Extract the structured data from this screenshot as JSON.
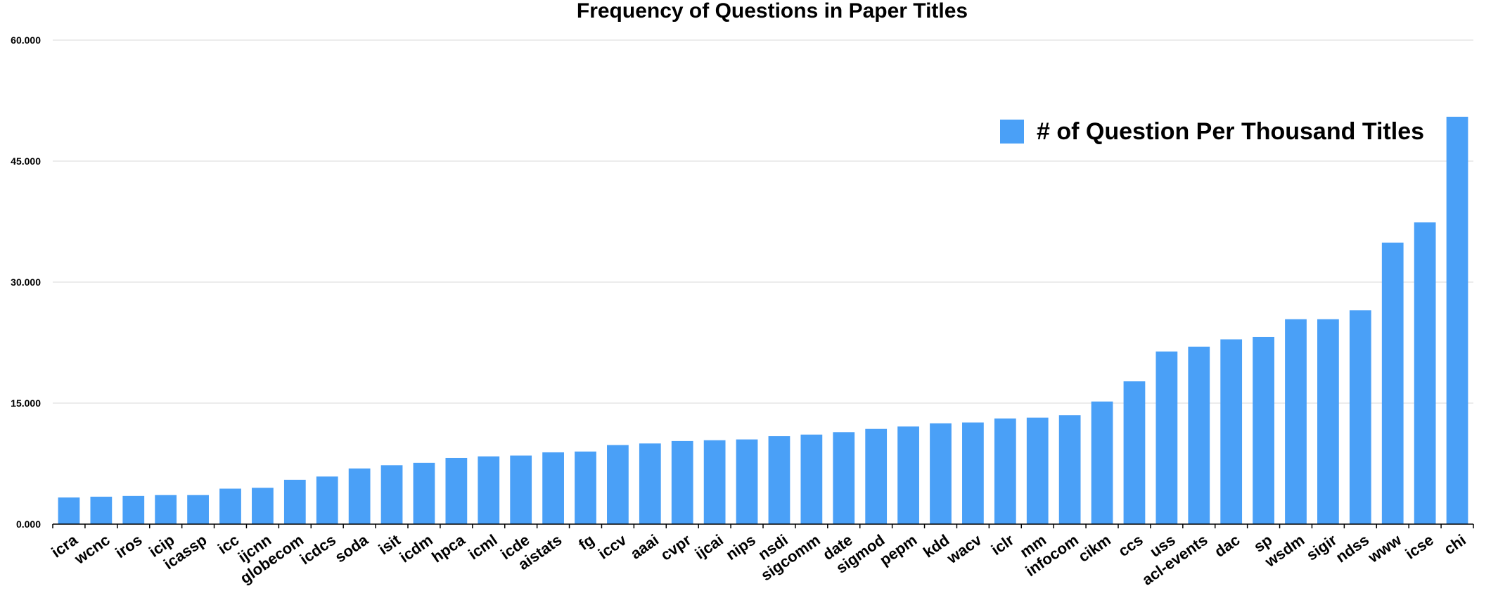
{
  "colors": {
    "bar": "#4aa0f7",
    "grid": "#d9d9d9",
    "axis": "#000000"
  },
  "chart_data": {
    "type": "bar",
    "title": "Frequency of Questions in Paper Titles",
    "xlabel": "",
    "ylabel": "",
    "ylim": [
      0,
      60
    ],
    "yticks": [
      0,
      15,
      30,
      45,
      60
    ],
    "ytick_labels": [
      "0.000",
      "15.000",
      "30.000",
      "45.000",
      "60.000"
    ],
    "grid": true,
    "legend_position": "top-right",
    "categories": [
      "icra",
      "wcnc",
      "iros",
      "icip",
      "icassp",
      "icc",
      "ijcnn",
      "globecom",
      "icdcs",
      "soda",
      "isit",
      "icdm",
      "hpca",
      "icml",
      "icde",
      "aistats",
      "fg",
      "iccv",
      "aaai",
      "cvpr",
      "ijcai",
      "nips",
      "nsdi",
      "sigcomm",
      "date",
      "sigmod",
      "pepm",
      "kdd",
      "wacv",
      "iclr",
      "mm",
      "infocom",
      "cikm",
      "ccs",
      "uss",
      "acl-events",
      "dac",
      "sp",
      "wsdm",
      "sigir",
      "ndss",
      "www",
      "icse",
      "chi"
    ],
    "series": [
      {
        "name": "# of Question Per Thousand Titles",
        "values": [
          3.3,
          3.4,
          3.5,
          3.6,
          3.6,
          4.4,
          4.5,
          5.5,
          5.9,
          6.9,
          7.3,
          7.6,
          8.2,
          8.4,
          8.5,
          8.9,
          9.0,
          9.8,
          10.0,
          10.3,
          10.4,
          10.5,
          10.9,
          11.1,
          11.4,
          11.8,
          12.1,
          12.5,
          12.6,
          13.1,
          13.2,
          13.5,
          15.2,
          17.7,
          21.4,
          22.0,
          22.9,
          23.2,
          25.4,
          25.4,
          26.5,
          34.9,
          37.4,
          50.5
        ]
      }
    ]
  }
}
